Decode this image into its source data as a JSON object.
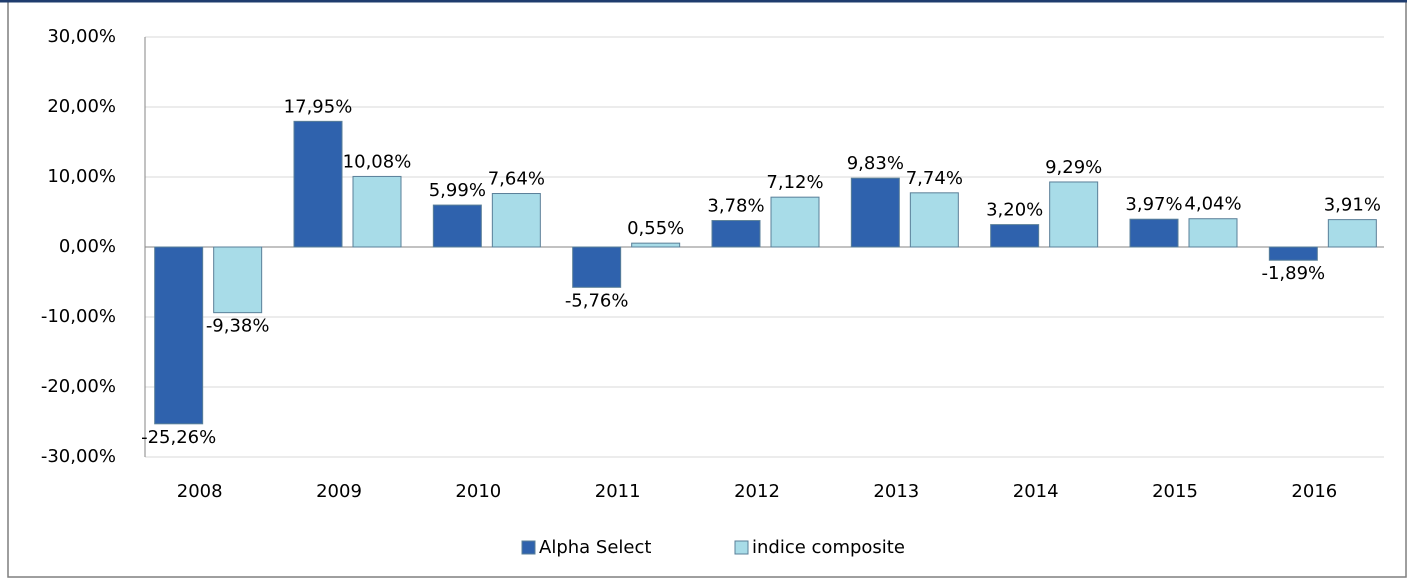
{
  "chart_data": {
    "type": "bar",
    "categories": [
      "2008",
      "2009",
      "2010",
      "2011",
      "2012",
      "2013",
      "2014",
      "2015",
      "2016"
    ],
    "series": [
      {
        "name": "Alpha Select",
        "color": "#2f62ad",
        "values": [
          -25.26,
          17.95,
          5.99,
          -5.76,
          3.78,
          9.83,
          3.2,
          3.97,
          -1.89
        ],
        "value_labels": [
          "-25,26%",
          "17,95%",
          "5,99%",
          "-5,76%",
          "3,78%",
          "9,83%",
          "3,20%",
          "3,97%",
          "-1,89%"
        ]
      },
      {
        "name": "indice composite",
        "color": "#a8dce8",
        "values": [
          -9.38,
          10.08,
          7.64,
          0.55,
          7.12,
          7.74,
          9.29,
          4.04,
          3.91
        ],
        "value_labels": [
          "-9,38%",
          "10,08%",
          "7,64%",
          "0,55%",
          "7,12%",
          "7,74%",
          "9,29%",
          "4,04%",
          "3,91%"
        ]
      }
    ],
    "ylim": [
      -30,
      30
    ],
    "yticks": [
      {
        "value": -30,
        "label": "-30,00%"
      },
      {
        "value": -20,
        "label": "-20,00%"
      },
      {
        "value": -10,
        "label": "-10,00%"
      },
      {
        "value": 0,
        "label": "0,00%"
      },
      {
        "value": 10,
        "label": "10,00%"
      },
      {
        "value": 20,
        "label": "20,00%"
      },
      {
        "value": 30,
        "label": "30,00%"
      }
    ],
    "grid": true,
    "legend": "bottom"
  }
}
